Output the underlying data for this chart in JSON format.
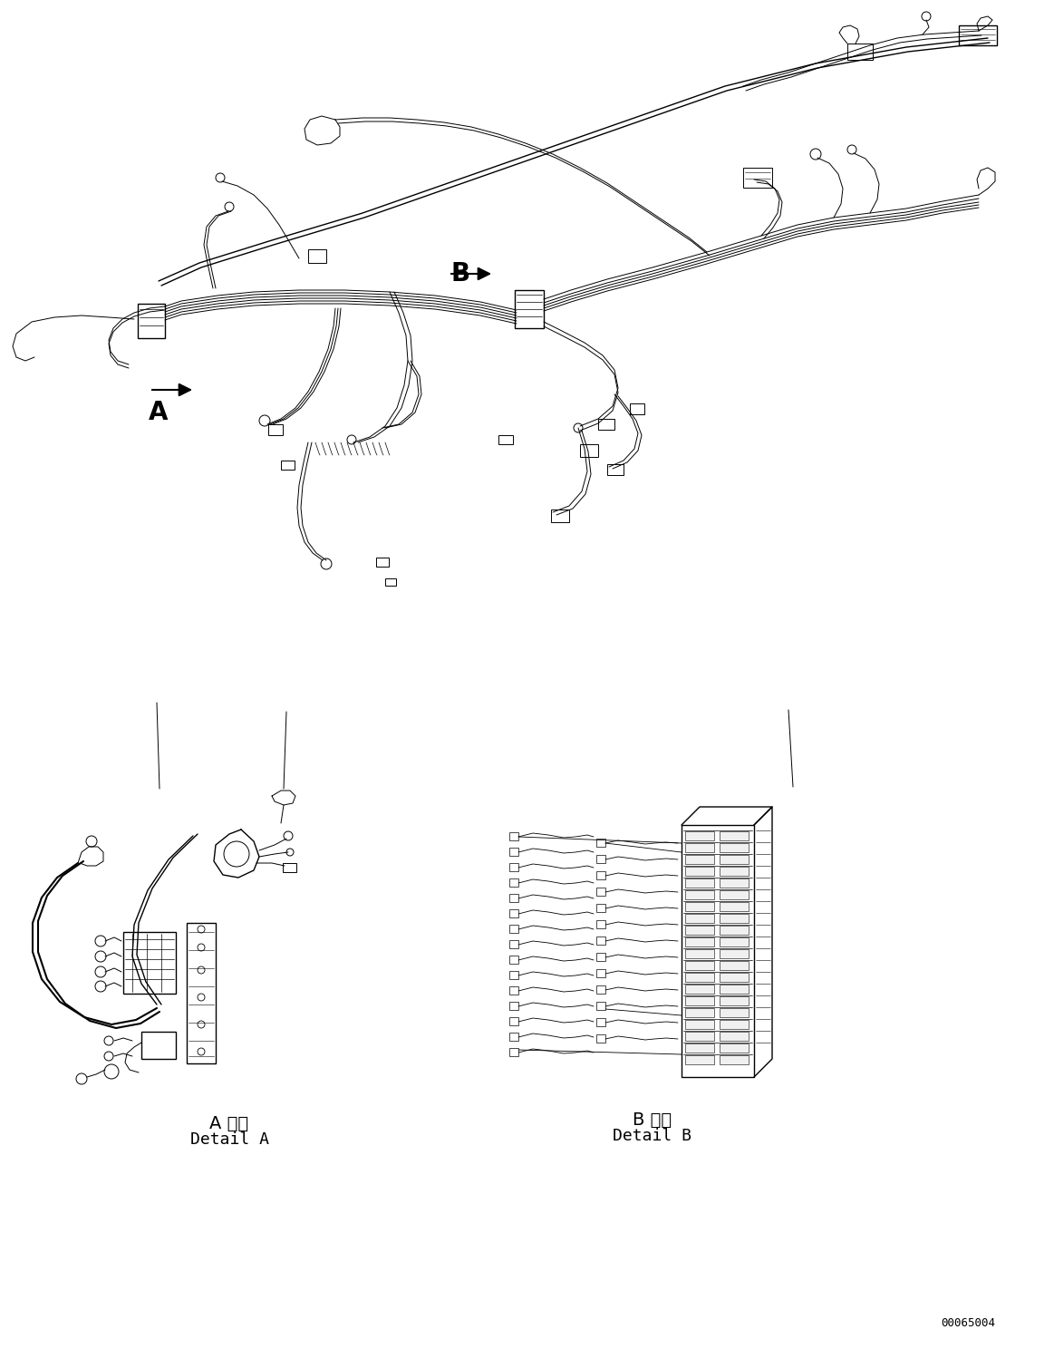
{
  "background_color": "#ffffff",
  "line_color": "#000000",
  "figure_width": 11.63,
  "figure_height": 14.88,
  "dpi": 100,
  "part_number": "00065004",
  "label_A": "A",
  "label_B": "B",
  "detail_A_jp": "A 詳細",
  "detail_A_en": "Detail A",
  "detail_B_jp": "B 詳細",
  "detail_B_en": "Detail B",
  "font_size_label": 20,
  "font_size_detail": 13,
  "font_size_partnumber": 9
}
